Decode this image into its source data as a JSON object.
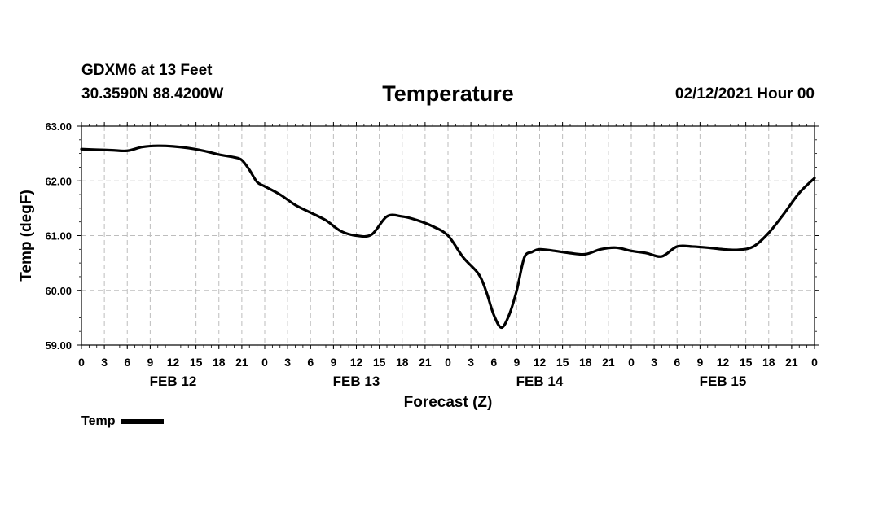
{
  "header": {
    "station": "GDXM6 at 13 Feet",
    "coords": "30.3590N 88.4200W",
    "title": "Temperature",
    "run_time": "02/12/2021 Hour 00"
  },
  "legend": {
    "label": "Temp"
  },
  "chart_data": {
    "type": "line",
    "title": "Temperature",
    "xlabel": "Forecast (Z)",
    "ylabel": "Temp (degF)",
    "ylim": [
      59.0,
      63.0
    ],
    "y_ticks": [
      "59.00",
      "60.00",
      "61.00",
      "62.00",
      "63.00"
    ],
    "x_range_hours": [
      0,
      96
    ],
    "x_tick_labels": [
      "0",
      "3",
      "6",
      "9",
      "12",
      "15",
      "18",
      "21",
      "0",
      "3",
      "6",
      "9",
      "12",
      "15",
      "18",
      "21",
      "0",
      "3",
      "6",
      "9",
      "12",
      "15",
      "18",
      "21",
      "0",
      "3",
      "6",
      "9",
      "12",
      "15",
      "18",
      "21",
      "0"
    ],
    "date_labels": [
      {
        "label": "FEB 12",
        "hour": 12
      },
      {
        "label": "FEB 13",
        "hour": 36
      },
      {
        "label": "FEB 14",
        "hour": 60
      },
      {
        "label": "FEB 15",
        "hour": 84
      }
    ],
    "grid": true,
    "series": [
      {
        "name": "Temp",
        "x": [
          0,
          2,
          4,
          6,
          8,
          10,
          12,
          14,
          16,
          18,
          20,
          21,
          22,
          23,
          24,
          26,
          28,
          30,
          32,
          34,
          36,
          38,
          40,
          42,
          44,
          46,
          48,
          50,
          52,
          53,
          54,
          55,
          56,
          57,
          58,
          59,
          60,
          62,
          64,
          66,
          68,
          70,
          72,
          74,
          76,
          78,
          80,
          82,
          84,
          86,
          88,
          90,
          92,
          94,
          96
        ],
        "y": [
          62.58,
          62.57,
          62.56,
          62.55,
          62.62,
          62.64,
          62.63,
          62.6,
          62.55,
          62.48,
          62.43,
          62.38,
          62.2,
          61.98,
          61.9,
          61.75,
          61.56,
          61.42,
          61.28,
          61.08,
          61.0,
          61.02,
          61.35,
          61.35,
          61.28,
          61.17,
          61.0,
          60.6,
          60.3,
          59.98,
          59.55,
          59.32,
          59.55,
          60.0,
          60.6,
          60.7,
          60.75,
          60.72,
          60.68,
          60.66,
          60.75,
          60.78,
          60.72,
          60.68,
          60.62,
          60.8,
          60.8,
          60.78,
          60.75,
          60.74,
          60.8,
          61.05,
          61.4,
          61.78,
          62.05
        ]
      }
    ]
  }
}
